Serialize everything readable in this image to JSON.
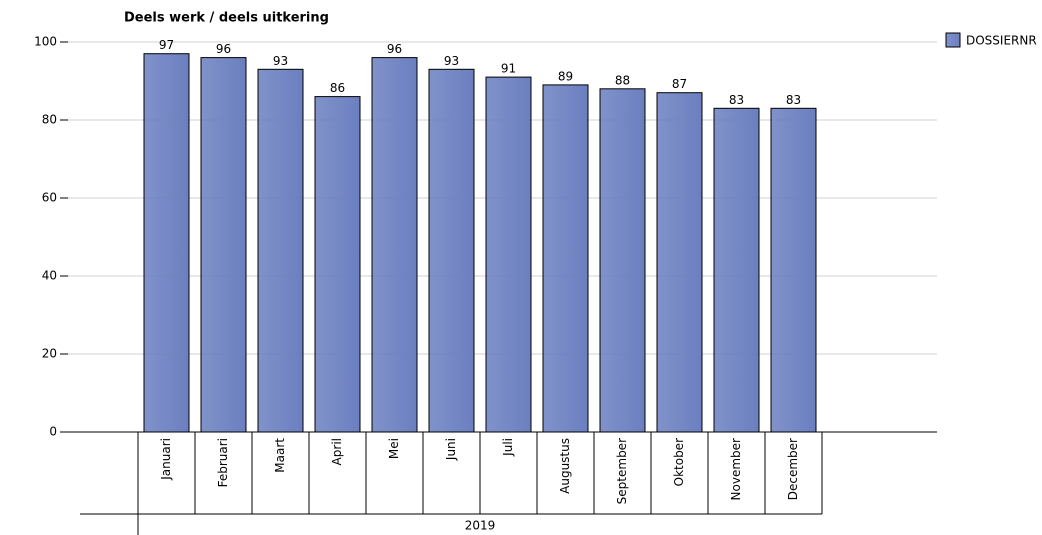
{
  "chart_data": {
    "type": "bar",
    "title": "Deels werk / deels uitkering",
    "categories": [
      "Januari",
      "Februari",
      "Maart",
      "April",
      "Mei",
      "Juni",
      "Juli",
      "Augustus",
      "September",
      "Oktober",
      "November",
      "December"
    ],
    "group_label": "2019",
    "series": [
      {
        "name": "DOSSIERNR",
        "color": "#6b7fc0",
        "values": [
          97,
          96,
          93,
          86,
          96,
          93,
          91,
          89,
          88,
          87,
          83,
          83
        ]
      }
    ],
    "ylim": [
      0,
      100
    ],
    "yticks": [
      0,
      20,
      40,
      60,
      80,
      100
    ],
    "grid": true,
    "legend": "top-right"
  }
}
